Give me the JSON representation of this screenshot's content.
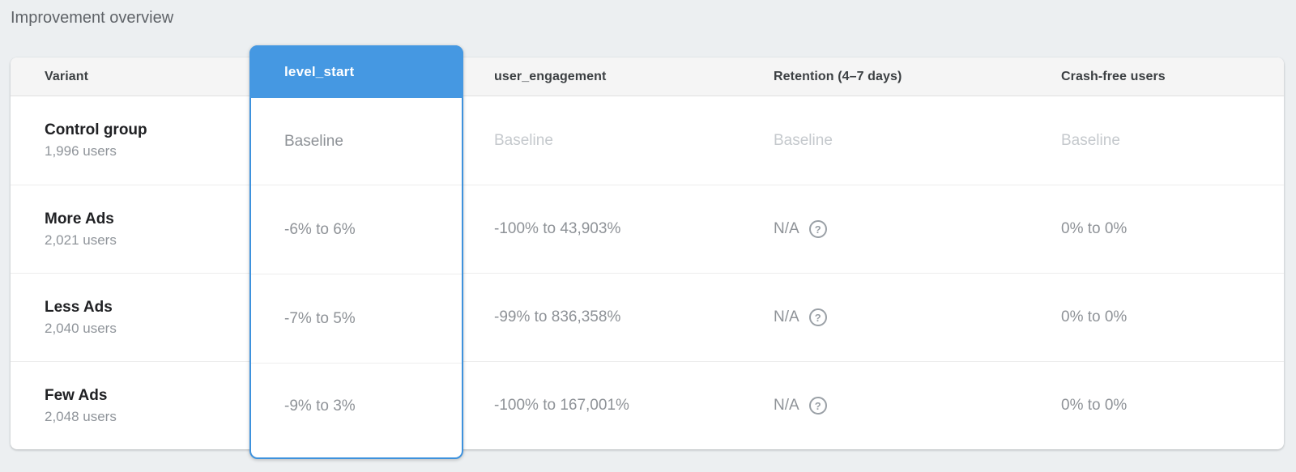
{
  "page_title": "Improvement overview",
  "colors": {
    "accent_blue": "#4598e2",
    "accent_blue_border": "#3e92dd",
    "card_bg": "#ffffff",
    "page_bg": "#eceff1",
    "header_bg": "#f5f5f5",
    "baseline_text": "#c5c9cd",
    "value_text": "#8e9297"
  },
  "icons": {
    "help_glyph": "?"
  },
  "table": {
    "columns": [
      {
        "label": "Variant",
        "highlighted": false
      },
      {
        "label": "level_start",
        "highlighted": true
      },
      {
        "label": "user_engagement",
        "highlighted": false
      },
      {
        "label": "Retention (4–7 days)",
        "highlighted": false
      },
      {
        "label": "Crash-free users",
        "highlighted": false
      }
    ],
    "rows": [
      {
        "variant": "Control group",
        "users": "1,996 users",
        "level_start": "Baseline",
        "user_engagement": "Baseline",
        "retention": "Baseline",
        "crash_free": "Baseline",
        "is_baseline": true
      },
      {
        "variant": "More Ads",
        "users": "2,021 users",
        "level_start": "-6% to 6%",
        "user_engagement": "-100% to 43,903%",
        "retention": "N/A",
        "crash_free": "0% to 0%",
        "is_baseline": false
      },
      {
        "variant": "Less Ads",
        "users": "2,040 users",
        "level_start": "-7% to 5%",
        "user_engagement": "-99% to 836,358%",
        "retention": "N/A",
        "crash_free": "0% to 0%",
        "is_baseline": false
      },
      {
        "variant": "Few Ads",
        "users": "2,048 users",
        "level_start": "-9% to 3%",
        "user_engagement": "-100% to 167,001%",
        "retention": "N/A",
        "crash_free": "0% to 0%",
        "is_baseline": false
      }
    ]
  }
}
